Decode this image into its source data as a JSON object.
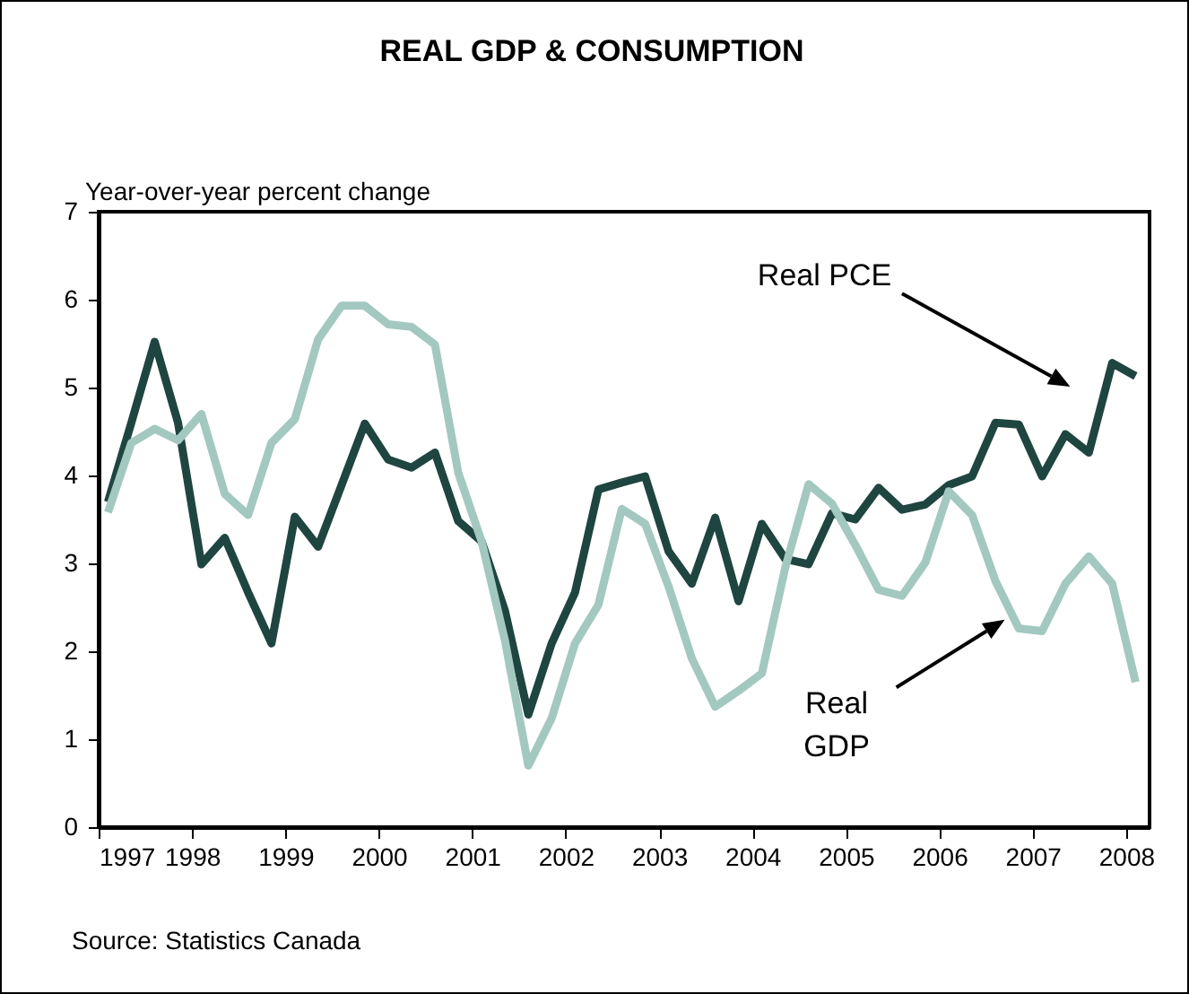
{
  "chart_data": {
    "type": "line",
    "title": "REAL GDP & CONSUMPTION",
    "ylabel": "Year-over-year percent change",
    "x": [
      1997.1,
      1997.35,
      1997.6,
      1997.85,
      1998.1,
      1998.35,
      1998.6,
      1998.85,
      1999.1,
      1999.35,
      1999.6,
      1999.85,
      2000.1,
      2000.35,
      2000.6,
      2000.85,
      2001.1,
      2001.35,
      2001.6,
      2001.85,
      2002.1,
      2002.35,
      2002.6,
      2002.85,
      2003.1,
      2003.35,
      2003.6,
      2003.85,
      2004.1,
      2004.35,
      2004.6,
      2004.85,
      2005.1,
      2005.35,
      2005.6,
      2005.85,
      2006.1,
      2006.35,
      2006.6,
      2006.85,
      2007.1,
      2007.35,
      2007.6,
      2007.85,
      2008.1
    ],
    "series": [
      {
        "name": "Real PCE",
        "color": "#1f4540",
        "values": [
          3.7,
          4.6,
          5.52,
          4.6,
          2.99,
          3.29,
          2.67,
          2.09,
          3.53,
          3.19,
          3.89,
          4.59,
          4.18,
          4.09,
          4.26,
          3.48,
          3.25,
          2.46,
          1.28,
          2.09,
          2.67,
          3.84,
          3.92,
          3.99,
          3.14,
          2.77,
          3.52,
          2.57,
          3.45,
          3.05,
          2.99,
          3.57,
          3.5,
          3.86,
          3.61,
          3.67,
          3.89,
          3.99,
          4.6,
          4.58,
          3.99,
          4.47,
          4.26,
          5.28,
          5.13
        ]
      },
      {
        "name": "Real GDP",
        "color": "#a3c8bf",
        "values": [
          3.58,
          4.37,
          4.53,
          4.4,
          4.7,
          3.79,
          3.55,
          4.37,
          4.64,
          5.55,
          5.93,
          5.93,
          5.72,
          5.69,
          5.49,
          4.03,
          3.25,
          2.12,
          0.7,
          1.24,
          2.09,
          2.53,
          3.62,
          3.45,
          2.74,
          1.92,
          1.37,
          1.55,
          1.75,
          2.95,
          3.9,
          3.68,
          3.21,
          2.7,
          2.63,
          3.01,
          3.82,
          3.55,
          2.8,
          2.26,
          2.23,
          2.77,
          3.08,
          2.77,
          1.65
        ]
      }
    ],
    "xlim": [
      1997,
      2008.25
    ],
    "xticks": [
      1997,
      1998,
      1999,
      2000,
      2001,
      2002,
      2003,
      2004,
      2005,
      2006,
      2007,
      2008
    ],
    "ylim": [
      0,
      7
    ],
    "yticks": [
      0,
      1,
      2,
      3,
      4,
      5,
      6,
      7
    ],
    "annotations": [
      "Source: Statistics Canada"
    ]
  }
}
